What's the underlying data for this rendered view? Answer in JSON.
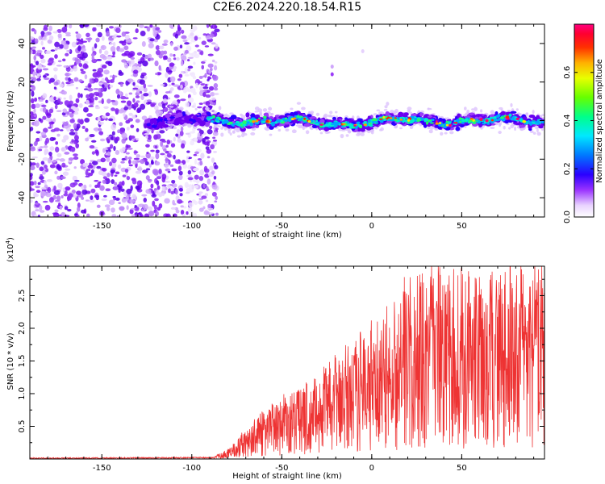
{
  "title": "C2E6.2024.220.18.54.R15",
  "chart_data": [
    {
      "type": "heatmap",
      "name": "spectrogram",
      "xlabel": "Height of straight line (km)",
      "ylabel": "Frequency (Hz)",
      "xlim": [
        -190,
        96
      ],
      "ylim": [
        -50,
        50
      ],
      "xticks": [
        -150,
        -100,
        -50,
        0,
        50
      ],
      "yticks": [
        -40,
        -20,
        0,
        20,
        40
      ],
      "noise_region_x": [
        -190,
        -86
      ],
      "signal_start_x": -125,
      "signal_center_freq_hz": 0,
      "signal_halfwidth_hz": 5,
      "colorbar": {
        "label": "Normalized spectral amplitude",
        "range": [
          0.0,
          0.8
        ],
        "ticks": [
          0.0,
          0.2,
          0.4,
          0.6
        ]
      }
    },
    {
      "type": "line",
      "name": "snr",
      "xlabel": "Height of straight line (km)",
      "ylabel": "SNR (10 * v/v)",
      "multiplier": "(x10",
      "multiplier_exp": "4",
      "xlim": [
        -190,
        96
      ],
      "ylim": [
        0,
        2.95
      ],
      "xticks": [
        -150,
        -100,
        -50,
        0,
        50
      ],
      "yticks": [
        0.5,
        1.0,
        1.5,
        2.0,
        2.5
      ],
      "color": "#ee3333",
      "series": [
        {
          "x": -190,
          "y": 0.01
        },
        {
          "x": -88,
          "y": 0.02
        },
        {
          "x": -80,
          "y": 0.08
        },
        {
          "x": -70,
          "y": 0.25
        },
        {
          "x": -60,
          "y": 0.4
        },
        {
          "x": -50,
          "y": 0.5
        },
        {
          "x": -40,
          "y": 0.6
        },
        {
          "x": -30,
          "y": 0.7
        },
        {
          "x": -20,
          "y": 0.85
        },
        {
          "x": -10,
          "y": 1.0
        },
        {
          "x": 0,
          "y": 1.1
        },
        {
          "x": 10,
          "y": 1.25
        },
        {
          "x": 20,
          "y": 1.45
        },
        {
          "x": 30,
          "y": 1.6
        },
        {
          "x": 40,
          "y": 1.55
        },
        {
          "x": 50,
          "y": 1.55
        },
        {
          "x": 60,
          "y": 1.5
        },
        {
          "x": 70,
          "y": 1.55
        },
        {
          "x": 80,
          "y": 1.6
        },
        {
          "x": 96,
          "y": 1.6
        }
      ]
    }
  ]
}
